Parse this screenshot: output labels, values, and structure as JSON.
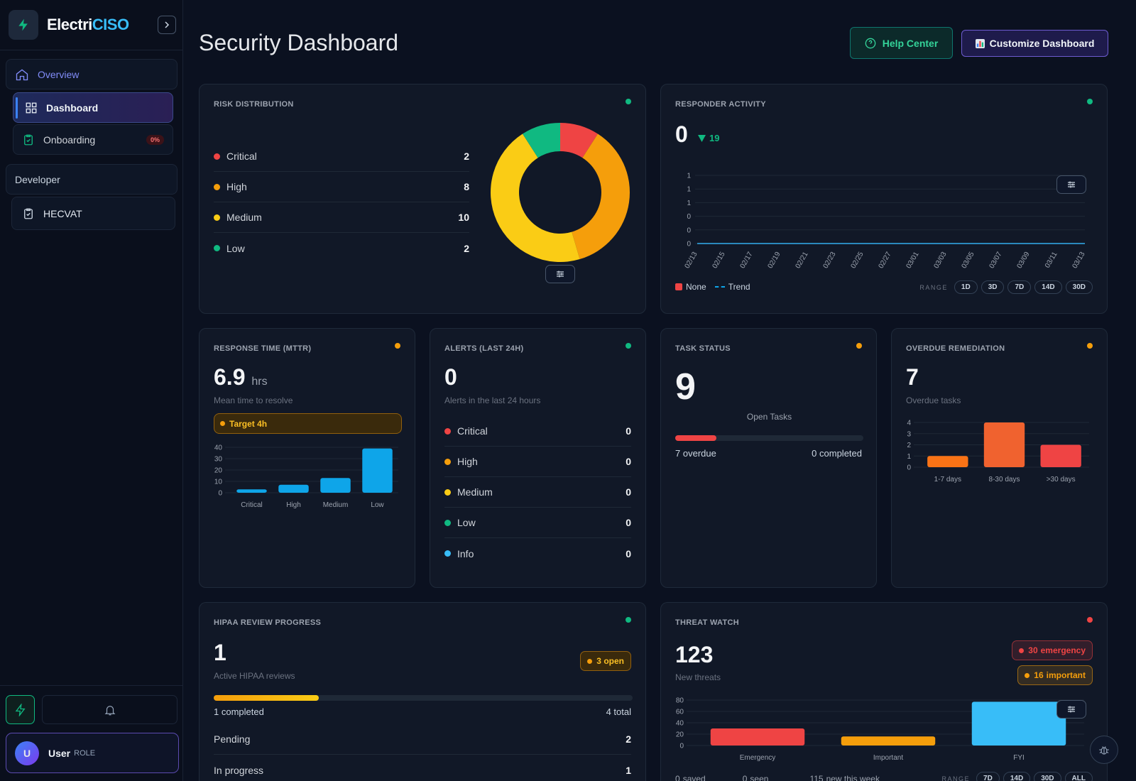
{
  "sidebar": {
    "brand_prefix": "Electri",
    "brand_suffix": "CISO",
    "groups": [
      {
        "label": "Overview",
        "items": [
          {
            "label": "Dashboard"
          },
          {
            "label": "Onboarding",
            "badge": "0%"
          }
        ]
      },
      {
        "label": "Developer",
        "items": [
          {
            "label": "HECVAT"
          }
        ]
      }
    ],
    "user": {
      "initial": "U",
      "name": "User",
      "role": "ROLE"
    }
  },
  "header": {
    "title": "Security Dashboard",
    "help": "Help Center",
    "customize": "Customize Dashboard"
  },
  "risk_distribution": {
    "title": "RISK DISTRIBUTION",
    "status_color": "#10b981",
    "type": "pie",
    "categories": [
      "Critical",
      "High",
      "Medium",
      "Low"
    ],
    "values": [
      2,
      8,
      10,
      2
    ],
    "colors": [
      "#ef4444",
      "#f59e0b",
      "#facc15",
      "#10b981"
    ]
  },
  "responder_activity": {
    "title": "RESPONDER ACTIVITY",
    "status_color": "#10b981",
    "total": 0,
    "delta": 19,
    "type": "line",
    "x": [
      "02/13",
      "02/15",
      "02/17",
      "02/19",
      "02/21",
      "02/23",
      "02/25",
      "02/27",
      "03/01",
      "03/03",
      "03/05",
      "03/07",
      "03/09",
      "03/11",
      "03/13"
    ],
    "ylim": [
      0,
      1
    ],
    "yticks": [
      0,
      {
        "value": 0.2,
        "label": "0"
      },
      {
        "value": 0.4,
        "label": "0"
      },
      {
        "value": 0.6,
        "label": "1"
      },
      {
        "value": 0.8,
        "label": "1"
      },
      1
    ],
    "series": [
      {
        "name": "None",
        "color": "#ef4444",
        "values": [
          0,
          0,
          0,
          0,
          0,
          0,
          0,
          0,
          0,
          0,
          0,
          0,
          0,
          0,
          0
        ]
      },
      {
        "name": "Trend",
        "color": "#0ea5e9",
        "dashed": true,
        "values": [
          0,
          0,
          0,
          0,
          0,
          0,
          0,
          0,
          0,
          0,
          0,
          0,
          0,
          0,
          0
        ]
      }
    ],
    "range_label": "RANGE",
    "ranges": [
      "1D",
      "3D",
      "7D",
      "14D",
      "30D"
    ]
  },
  "response_time": {
    "title": "RESPONSE TIME (MTTR)",
    "status_color": "#f59e0b",
    "value": 6.9,
    "unit": "hrs",
    "caption": "Mean time to resolve",
    "target": "Target 4h",
    "type": "bar",
    "categories": [
      "Critical",
      "High",
      "Medium",
      "Low"
    ],
    "values": [
      3,
      7,
      13,
      39
    ],
    "color": "#0ea5e9",
    "ylim": [
      0,
      40
    ],
    "yticks": [
      0,
      10,
      20,
      30,
      40
    ]
  },
  "alerts": {
    "title": "ALERTS (LAST 24H)",
    "status_color": "#10b981",
    "value": 0,
    "caption": "Alerts in the last 24 hours",
    "items": [
      {
        "label": "Critical",
        "value": 0,
        "color": "#ef4444"
      },
      {
        "label": "High",
        "value": 0,
        "color": "#f59e0b"
      },
      {
        "label": "Medium",
        "value": 0,
        "color": "#facc15"
      },
      {
        "label": "Low",
        "value": 0,
        "color": "#10b981"
      },
      {
        "label": "Info",
        "value": 0,
        "color": "#38bdf8"
      }
    ]
  },
  "task_status": {
    "title": "TASK STATUS",
    "status_color": "#f59e0b",
    "value": 9,
    "caption": "Open Tasks",
    "progress": 22,
    "overdue": 7,
    "overdue_label": "overdue",
    "completed": 0,
    "completed_label": "completed"
  },
  "overdue_remediation": {
    "title": "OVERDUE REMEDIATION",
    "status_color": "#f59e0b",
    "value": 7,
    "caption": "Overdue tasks",
    "type": "bar",
    "categories": [
      "1-7 days",
      "8-30 days",
      ">30 days"
    ],
    "values": [
      1,
      4,
      2
    ],
    "colors": [
      "#f97316",
      "#f0622f",
      "#ef4444"
    ],
    "ylim": [
      0,
      4
    ],
    "yticks": [
      0,
      1,
      2,
      3,
      4
    ]
  },
  "hipaa": {
    "title": "HIPAA REVIEW PROGRESS",
    "status_color": "#10b981",
    "value": 1,
    "caption": "Active HIPAA reviews",
    "open": 3,
    "open_label": "open",
    "completed": 1,
    "completed_label": "completed",
    "total": 4,
    "total_label": "total",
    "items": [
      {
        "label": "Pending",
        "value": 2
      },
      {
        "label": "In progress",
        "value": 1
      }
    ]
  },
  "threat_watch": {
    "title": "THREAT WATCH",
    "status_color": "#ef4444",
    "value": 123,
    "caption": "New threats",
    "badges": [
      {
        "value": 30,
        "label": "emergency",
        "color": "#ef4444"
      },
      {
        "value": 16,
        "label": "important",
        "color": "#f59e0b"
      }
    ],
    "type": "bar",
    "categories": [
      "Emergency",
      "Important",
      "FYI"
    ],
    "values": [
      30,
      16,
      77
    ],
    "colors": [
      "#ef4444",
      "#f59e0b",
      "#38bdf8"
    ],
    "ylim": [
      0,
      80
    ],
    "yticks": [
      0,
      20,
      40,
      60,
      80
    ],
    "footer": [
      {
        "value": 0,
        "label": "saved"
      },
      {
        "value": 0,
        "label": "seen"
      },
      {
        "value": 115,
        "label": "new this week"
      }
    ],
    "range_label": "RANGE",
    "ranges": [
      "7D",
      "14D",
      "30D",
      "ALL"
    ]
  }
}
